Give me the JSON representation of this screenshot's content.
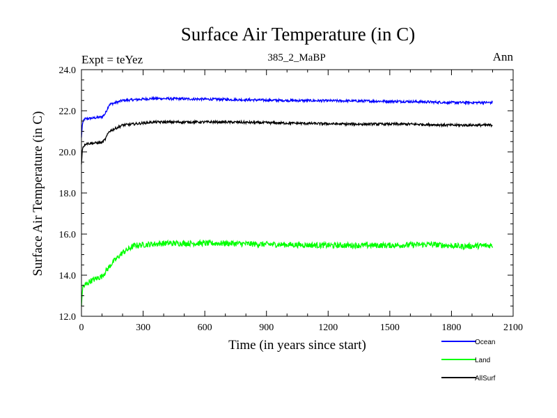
{
  "chart_data": {
    "type": "line",
    "title": "Surface Air Temperature (in C)",
    "subtitle": "385_2_MaBP",
    "left_label": "Expt = teYez",
    "right_label": "Ann",
    "xlabel": "Time (in years since start)",
    "ylabel": "Surface Air Temperature (in C)",
    "xlim": [
      0,
      2100
    ],
    "ylim": [
      12.0,
      24.0
    ],
    "xticks": [
      "0",
      "300",
      "600",
      "900",
      "1200",
      "1500",
      "1800",
      "2100"
    ],
    "yticks": [
      "12.0",
      "14.0",
      "16.0",
      "18.0",
      "20.0",
      "22.0",
      "24.0"
    ],
    "legend_position": "bottom-right",
    "series": [
      {
        "name": "Ocean",
        "color": "#0000ff",
        "noise": 0.06,
        "points": [
          [
            0,
            20.7
          ],
          [
            5,
            21.4
          ],
          [
            15,
            21.6
          ],
          [
            60,
            21.65
          ],
          [
            100,
            21.7
          ],
          [
            115,
            21.85
          ],
          [
            135,
            22.3
          ],
          [
            200,
            22.5
          ],
          [
            350,
            22.6
          ],
          [
            700,
            22.55
          ],
          [
            1000,
            22.5
          ],
          [
            1300,
            22.48
          ],
          [
            1600,
            22.45
          ],
          [
            1800,
            22.4
          ],
          [
            2000,
            22.4
          ]
        ]
      },
      {
        "name": "Land",
        "color": "#00ff00",
        "noise": 0.14,
        "points": [
          [
            0,
            12.5
          ],
          [
            5,
            13.4
          ],
          [
            40,
            13.7
          ],
          [
            100,
            13.95
          ],
          [
            150,
            14.6
          ],
          [
            200,
            15.1
          ],
          [
            260,
            15.45
          ],
          [
            400,
            15.55
          ],
          [
            700,
            15.55
          ],
          [
            900,
            15.5
          ],
          [
            1200,
            15.45
          ],
          [
            1500,
            15.45
          ],
          [
            1700,
            15.5
          ],
          [
            1850,
            15.4
          ],
          [
            2000,
            15.45
          ]
        ]
      },
      {
        "name": "AllSurf",
        "color": "#000000",
        "noise": 0.06,
        "points": [
          [
            0,
            19.4
          ],
          [
            5,
            20.2
          ],
          [
            20,
            20.4
          ],
          [
            100,
            20.45
          ],
          [
            115,
            20.6
          ],
          [
            135,
            21.0
          ],
          [
            200,
            21.3
          ],
          [
            350,
            21.45
          ],
          [
            700,
            21.45
          ],
          [
            1000,
            21.4
          ],
          [
            1300,
            21.35
          ],
          [
            1600,
            21.35
          ],
          [
            1800,
            21.3
          ],
          [
            2000,
            21.3
          ]
        ]
      }
    ]
  }
}
